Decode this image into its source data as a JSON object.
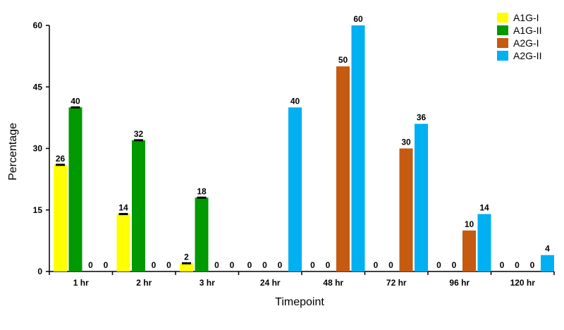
{
  "chart_data": {
    "type": "bar",
    "xlabel": "Timepoint",
    "ylabel": "Percentage",
    "ylim": [
      0,
      60
    ],
    "yticks": [
      "0",
      "15",
      "30",
      "45",
      "60"
    ],
    "categories": [
      "1 hr",
      "2 hr",
      "3 hr",
      "24 hr",
      "48 hr",
      "72 hr",
      "96 hr",
      "120 hr"
    ],
    "legend_position": "top-right",
    "grid": false,
    "series": [
      {
        "name": "A1G-I",
        "color": "#ffff00",
        "values": [
          26,
          14,
          2,
          0,
          null,
          null,
          null,
          null
        ]
      },
      {
        "name": "A1G-II",
        "color": "#009900",
        "values": [
          40,
          32,
          18,
          0,
          null,
          null,
          null,
          null
        ]
      },
      {
        "name": "A2G-I",
        "color": "#c55a11",
        "values": [
          0,
          0,
          0,
          0,
          50,
          30,
          10,
          0
        ]
      },
      {
        "name": "A2G-II",
        "color": "#00b0f0",
        "values": [
          0,
          0,
          0,
          40,
          60,
          36,
          14,
          4
        ]
      }
    ],
    "labels": [
      [
        "26",
        "40",
        "0",
        "0"
      ],
      [
        "14",
        "32",
        "0",
        "0"
      ],
      [
        "2",
        "18",
        "0",
        "0"
      ],
      [
        "0",
        "0",
        "0",
        "40"
      ],
      [
        "0",
        "0",
        "50",
        "60"
      ],
      [
        "0",
        "0",
        "30",
        "36"
      ],
      [
        "0",
        "0",
        "10",
        "14"
      ],
      [
        "0",
        "0",
        "0",
        "4"
      ]
    ],
    "slot_series": [
      [
        0,
        1,
        2,
        3
      ],
      [
        0,
        1,
        2,
        3
      ],
      [
        0,
        1,
        2,
        3
      ],
      [
        0,
        1,
        2,
        3
      ],
      [
        0,
        1,
        2,
        3
      ],
      [
        0,
        1,
        2,
        3
      ],
      [
        0,
        1,
        2,
        3
      ],
      [
        1,
        0,
        2,
        3
      ]
    ],
    "error_bar_series": [
      "A1G-I",
      "A1G-II"
    ]
  }
}
